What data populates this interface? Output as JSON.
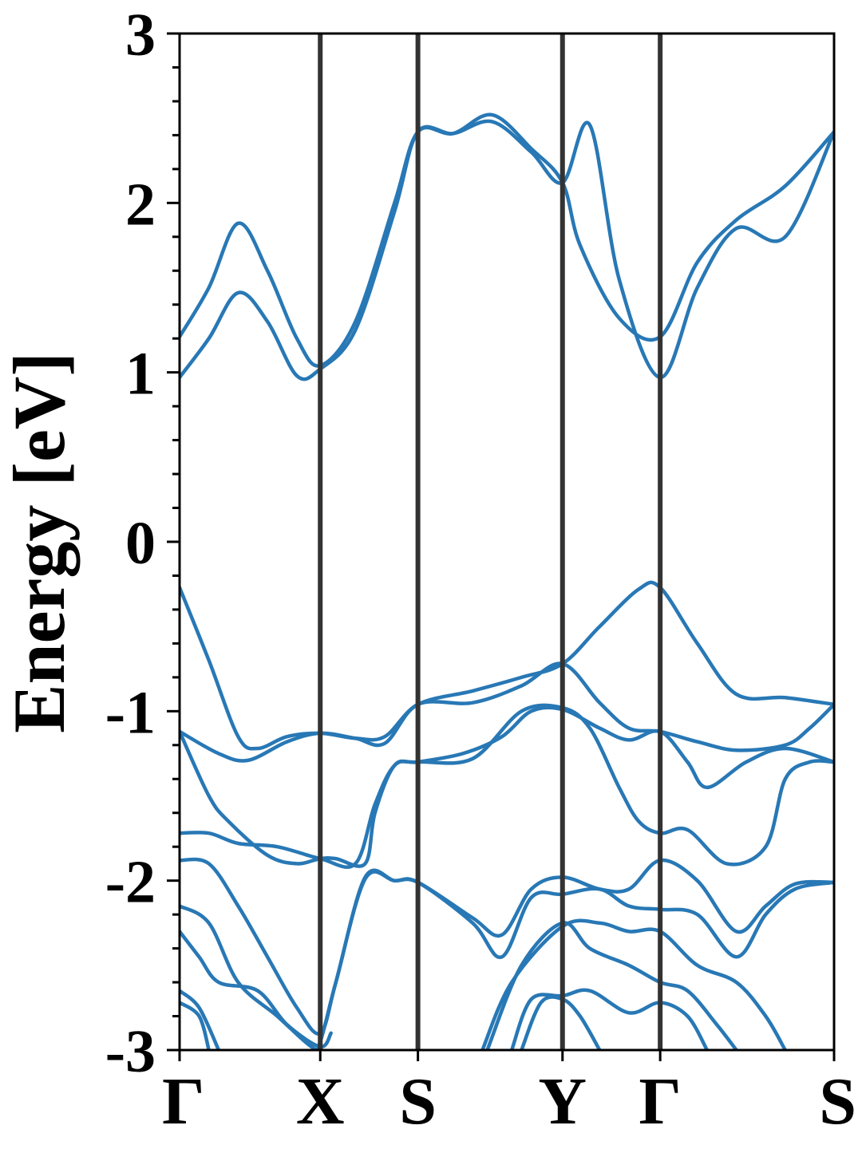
{
  "chart_data": {
    "type": "line",
    "title": "",
    "xlabel": "",
    "ylabel": "Energy [eV]",
    "ylim": [
      -3,
      3
    ],
    "xlim": [
      0,
      6.7
    ],
    "grid": false,
    "legend": "none",
    "band_color": "#2878b5",
    "kline_color": "#333333",
    "y_ticks": [
      {
        "value": 3,
        "label": "3"
      },
      {
        "value": 2,
        "label": "2"
      },
      {
        "value": 1,
        "label": "1"
      },
      {
        "value": 0,
        "label": "0"
      },
      {
        "value": -1,
        "label": "-1"
      },
      {
        "value": -2,
        "label": "-2"
      },
      {
        "value": -3,
        "label": "-3"
      }
    ],
    "y_minor_step": 0.2,
    "k_points": [
      {
        "label": "Γ",
        "x": 0
      },
      {
        "label": "X",
        "x": 1.44
      },
      {
        "label": "S",
        "x": 2.44
      },
      {
        "label": "Y",
        "x": 3.92
      },
      {
        "label": "Γ",
        "x": 4.92
      },
      {
        "label": "S",
        "x": 6.7
      }
    ],
    "series": [
      {
        "values": [
          [
            0,
            1.21
          ],
          [
            0.3,
            1.5
          ],
          [
            0.6,
            1.88
          ],
          [
            0.9,
            1.6
          ],
          [
            1.2,
            1.2
          ],
          [
            1.44,
            1.04
          ],
          [
            1.8,
            1.3
          ],
          [
            2.2,
            2.0
          ],
          [
            2.44,
            2.42
          ],
          [
            2.8,
            2.41
          ],
          [
            3.2,
            2.52
          ],
          [
            3.6,
            2.32
          ],
          [
            3.92,
            2.12
          ],
          [
            4.1,
            1.75
          ],
          [
            4.5,
            1.32
          ],
          [
            4.92,
            1.21
          ],
          [
            5.3,
            1.65
          ],
          [
            5.7,
            1.9
          ],
          [
            6.2,
            2.1
          ],
          [
            6.7,
            2.42
          ]
        ]
      },
      {
        "values": [
          [
            0,
            0.97
          ],
          [
            0.3,
            1.2
          ],
          [
            0.6,
            1.47
          ],
          [
            0.9,
            1.3
          ],
          [
            1.2,
            0.98
          ],
          [
            1.44,
            1.02
          ],
          [
            1.8,
            1.25
          ],
          [
            2.2,
            1.95
          ],
          [
            2.44,
            2.42
          ],
          [
            2.8,
            2.41
          ],
          [
            3.2,
            2.48
          ],
          [
            3.6,
            2.3
          ],
          [
            3.92,
            2.12
          ],
          [
            4.2,
            2.46
          ],
          [
            4.5,
            1.55
          ],
          [
            4.92,
            0.97
          ],
          [
            5.3,
            1.5
          ],
          [
            5.7,
            1.85
          ],
          [
            6.2,
            1.8
          ],
          [
            6.7,
            2.42
          ]
        ]
      },
      {
        "values": [
          [
            0,
            -0.27
          ],
          [
            0.3,
            -0.7
          ],
          [
            0.6,
            -1.15
          ],
          [
            0.8,
            -1.22
          ],
          [
            1.1,
            -1.15
          ],
          [
            1.44,
            -1.13
          ],
          [
            1.8,
            -1.16
          ],
          [
            2.1,
            -1.15
          ],
          [
            2.44,
            -0.96
          ],
          [
            3.0,
            -0.88
          ],
          [
            3.5,
            -0.8
          ],
          [
            3.92,
            -0.72
          ],
          [
            4.3,
            -0.5
          ],
          [
            4.7,
            -0.28
          ],
          [
            4.92,
            -0.27
          ],
          [
            5.3,
            -0.6
          ],
          [
            5.7,
            -0.9
          ],
          [
            6.2,
            -0.92
          ],
          [
            6.7,
            -0.96
          ]
        ]
      },
      {
        "values": [
          [
            0,
            -1.12
          ],
          [
            0.4,
            -1.25
          ],
          [
            0.7,
            -1.29
          ],
          [
            1.1,
            -1.18
          ],
          [
            1.44,
            -1.13
          ],
          [
            1.8,
            -1.16
          ],
          [
            2.1,
            -1.19
          ],
          [
            2.44,
            -0.96
          ],
          [
            3.0,
            -0.95
          ],
          [
            3.5,
            -0.85
          ],
          [
            3.92,
            -0.72
          ],
          [
            4.3,
            -0.95
          ],
          [
            4.6,
            -1.1
          ],
          [
            4.92,
            -1.12
          ],
          [
            5.3,
            -1.18
          ],
          [
            5.7,
            -1.23
          ],
          [
            6.2,
            -1.2
          ],
          [
            6.45,
            -1.1
          ],
          [
            6.7,
            -0.96
          ]
        ]
      },
      {
        "values": [
          [
            0,
            -1.12
          ],
          [
            0.3,
            -1.5
          ],
          [
            0.5,
            -1.65
          ],
          [
            0.9,
            -1.85
          ],
          [
            1.2,
            -1.9
          ],
          [
            1.44,
            -1.87
          ],
          [
            1.6,
            -1.87
          ],
          [
            1.9,
            -1.9
          ],
          [
            2.0,
            -1.6
          ],
          [
            2.2,
            -1.32
          ],
          [
            2.44,
            -1.3
          ],
          [
            2.9,
            -1.25
          ],
          [
            3.3,
            -1.15
          ],
          [
            3.6,
            -1.0
          ],
          [
            3.92,
            -0.99
          ],
          [
            4.3,
            -1.1
          ],
          [
            4.6,
            -1.17
          ],
          [
            4.92,
            -1.12
          ],
          [
            5.2,
            -1.3
          ],
          [
            5.4,
            -1.45
          ],
          [
            5.8,
            -1.3
          ],
          [
            6.2,
            -1.22
          ],
          [
            6.7,
            -1.3
          ]
        ]
      },
      {
        "values": [
          [
            0,
            -1.72
          ],
          [
            0.3,
            -1.72
          ],
          [
            0.6,
            -1.78
          ],
          [
            1.0,
            -1.8
          ],
          [
            1.44,
            -1.87
          ],
          [
            1.8,
            -1.9
          ],
          [
            2.0,
            -1.55
          ],
          [
            2.2,
            -1.32
          ],
          [
            2.44,
            -1.3
          ],
          [
            3.0,
            -1.28
          ],
          [
            3.5,
            -1.0
          ],
          [
            3.92,
            -0.98
          ],
          [
            4.2,
            -1.1
          ],
          [
            4.5,
            -1.45
          ],
          [
            4.7,
            -1.65
          ],
          [
            4.92,
            -1.72
          ],
          [
            5.2,
            -1.7
          ],
          [
            5.6,
            -1.9
          ],
          [
            6.0,
            -1.8
          ],
          [
            6.2,
            -1.4
          ],
          [
            6.45,
            -1.3
          ],
          [
            6.7,
            -1.3
          ]
        ]
      },
      {
        "values": [
          [
            0,
            -1.88
          ],
          [
            0.3,
            -1.9
          ],
          [
            0.6,
            -2.15
          ],
          [
            0.9,
            -2.45
          ],
          [
            1.2,
            -2.75
          ],
          [
            1.44,
            -2.9
          ],
          [
            1.6,
            -2.6
          ],
          [
            1.9,
            -1.98
          ],
          [
            2.2,
            -2.0
          ],
          [
            2.44,
            -2.01
          ],
          [
            3.0,
            -2.22
          ],
          [
            3.3,
            -2.32
          ],
          [
            3.6,
            -2.05
          ],
          [
            3.92,
            -1.98
          ],
          [
            4.3,
            -2.05
          ],
          [
            4.6,
            -2.05
          ],
          [
            4.92,
            -1.88
          ],
          [
            5.3,
            -2.0
          ],
          [
            5.7,
            -2.3
          ],
          [
            6.0,
            -2.15
          ],
          [
            6.3,
            -2.02
          ],
          [
            6.7,
            -2.01
          ]
        ]
      },
      {
        "values": [
          [
            0,
            -2.15
          ],
          [
            0.3,
            -2.25
          ],
          [
            0.6,
            -2.6
          ],
          [
            1.0,
            -2.8
          ],
          [
            1.35,
            -2.98
          ],
          [
            1.44,
            -2.95
          ],
          [
            1.6,
            -2.6
          ],
          [
            1.9,
            -1.99
          ],
          [
            2.2,
            -2.0
          ],
          [
            2.44,
            -2.01
          ],
          [
            3.0,
            -2.25
          ],
          [
            3.3,
            -2.45
          ],
          [
            3.6,
            -2.1
          ],
          [
            3.92,
            -2.08
          ],
          [
            4.3,
            -2.05
          ],
          [
            4.6,
            -2.15
          ],
          [
            4.92,
            -2.17
          ],
          [
            5.3,
            -2.2
          ],
          [
            5.7,
            -2.45
          ],
          [
            6.0,
            -2.2
          ],
          [
            6.3,
            -2.05
          ],
          [
            6.7,
            -2.01
          ]
        ]
      },
      {
        "values": [
          [
            0,
            -2.3
          ],
          [
            0.2,
            -2.45
          ],
          [
            0.4,
            -2.6
          ],
          [
            0.8,
            -2.65
          ],
          [
            1.1,
            -2.85
          ],
          [
            1.44,
            -2.98
          ],
          [
            1.55,
            -2.9
          ]
        ]
      },
      {
        "values": [
          [
            0,
            -2.65
          ],
          [
            0.2,
            -2.75
          ],
          [
            0.4,
            -3.0
          ]
        ]
      },
      {
        "values": [
          [
            0,
            -2.72
          ],
          [
            0.2,
            -2.8
          ],
          [
            0.3,
            -3.0
          ]
        ]
      },
      {
        "values": [
          [
            3.1,
            -3.0
          ],
          [
            3.4,
            -2.6
          ],
          [
            3.92,
            -2.27
          ],
          [
            4.3,
            -2.25
          ],
          [
            4.6,
            -2.3
          ],
          [
            4.92,
            -2.3
          ],
          [
            5.3,
            -2.5
          ],
          [
            5.7,
            -2.6
          ],
          [
            6.0,
            -2.8
          ],
          [
            6.2,
            -3.0
          ]
        ]
      },
      {
        "values": [
          [
            3.15,
            -3.0
          ],
          [
            3.5,
            -2.5
          ],
          [
            3.92,
            -2.25
          ],
          [
            4.2,
            -2.4
          ],
          [
            4.6,
            -2.5
          ],
          [
            4.92,
            -2.6
          ],
          [
            5.2,
            -2.65
          ],
          [
            5.5,
            -2.85
          ],
          [
            5.7,
            -3.0
          ]
        ]
      },
      {
        "values": [
          [
            3.4,
            -3.0
          ],
          [
            3.6,
            -2.7
          ],
          [
            3.92,
            -2.68
          ],
          [
            4.2,
            -2.65
          ],
          [
            4.6,
            -2.78
          ],
          [
            4.92,
            -2.72
          ],
          [
            5.2,
            -2.8
          ],
          [
            5.4,
            -3.0
          ]
        ]
      },
      {
        "values": [
          [
            3.5,
            -3.0
          ],
          [
            3.7,
            -2.72
          ],
          [
            3.92,
            -2.7
          ],
          [
            4.1,
            -2.8
          ],
          [
            4.3,
            -3.0
          ]
        ]
      }
    ]
  }
}
